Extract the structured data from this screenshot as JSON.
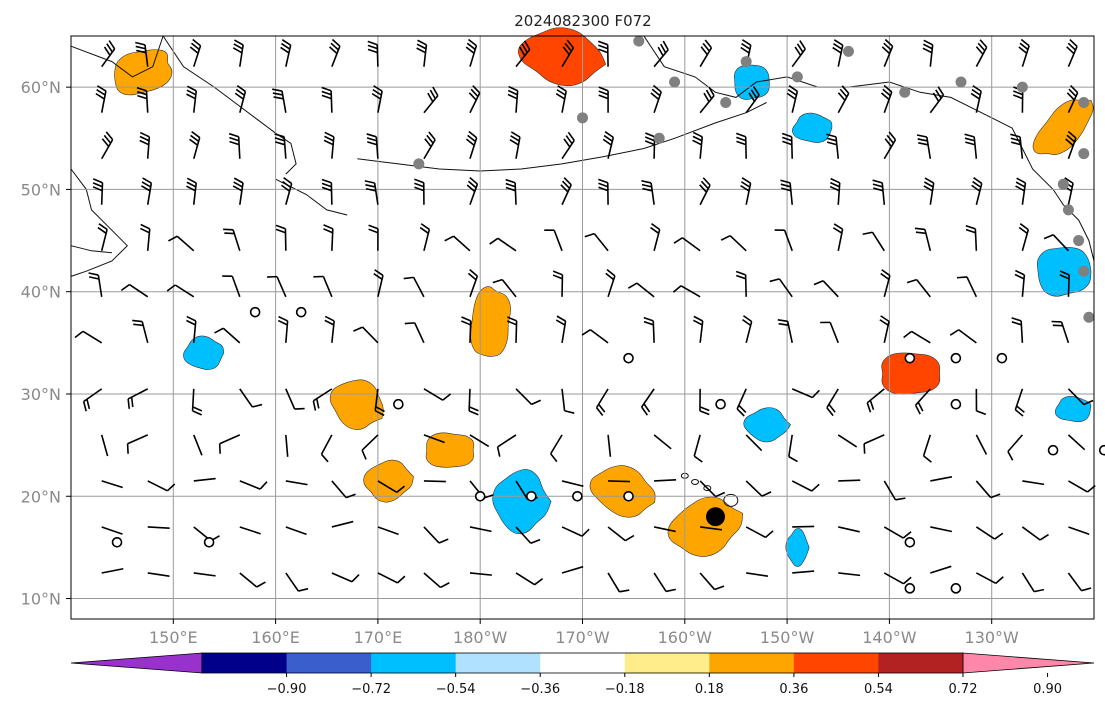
{
  "title": "2024082300 F072",
  "map": {
    "lon_range": [
      140,
      240
    ],
    "lat_range": [
      8,
      65
    ],
    "grid": true,
    "coastlines": [
      "alaska-and-aleutians",
      "western-canada-and-us-coast",
      "kamchatka-and-kuril",
      "japan-north",
      "hawaiian-islands"
    ]
  },
  "axes": {
    "y_ticks": [
      {
        "lat": 10,
        "label": "10°N"
      },
      {
        "lat": 20,
        "label": "20°N"
      },
      {
        "lat": 30,
        "label": "30°N"
      },
      {
        "lat": 40,
        "label": "40°N"
      },
      {
        "lat": 50,
        "label": "50°N"
      },
      {
        "lat": 60,
        "label": "60°N"
      }
    ],
    "x_ticks": [
      {
        "lon": 150,
        "label": "150°E"
      },
      {
        "lon": 160,
        "label": "160°E"
      },
      {
        "lon": 170,
        "label": "170°E"
      },
      {
        "lon": 180,
        "label": "180°W"
      },
      {
        "lon": 190,
        "label": "170°W"
      },
      {
        "lon": 200,
        "label": "160°W"
      },
      {
        "lon": 210,
        "label": "150°W"
      },
      {
        "lon": 220,
        "label": "140°W"
      },
      {
        "lon": 230,
        "label": "130°W"
      }
    ]
  },
  "colorbar": {
    "extend": "both",
    "colors": [
      "#9932cc",
      "#00008b",
      "#3a5fcd",
      "#00bfff",
      "#b0e2ff",
      "#ffffff",
      "#ffec8b",
      "#ffa500",
      "#ff4500",
      "#b22222",
      "#ff88aa"
    ],
    "tick_values": [
      "−0.90",
      "−0.72",
      "−0.54",
      "−0.36",
      "−0.18",
      "0.18",
      "0.36",
      "0.54",
      "0.72",
      "0.90"
    ]
  },
  "chart_data": {
    "type": "map",
    "field": "filled contours",
    "regions": [
      {
        "level": 0.45,
        "lon": 147,
        "lat": 61.5
      },
      {
        "level": 0.6,
        "lon": 188,
        "lat": 63
      },
      {
        "level": 0.5,
        "lon": 237,
        "lat": 56
      },
      {
        "level": 0.45,
        "lon": 181,
        "lat": 37
      },
      {
        "level": 0.45,
        "lon": 168,
        "lat": 29
      },
      {
        "level": 0.45,
        "lon": 171,
        "lat": 21.5
      },
      {
        "level": 0.45,
        "lon": 177,
        "lat": 24.5
      },
      {
        "level": 0.45,
        "lon": 194,
        "lat": 20.5
      },
      {
        "level": 0.45,
        "lon": 202,
        "lat": 17
      },
      {
        "level": 0.6,
        "lon": 222,
        "lat": 32
      },
      {
        "level": -0.45,
        "lon": 153,
        "lat": 34
      },
      {
        "level": -0.45,
        "lon": 184,
        "lat": 19.5
      },
      {
        "level": -0.45,
        "lon": 206.5,
        "lat": 60.5
      },
      {
        "level": -0.45,
        "lon": 212.5,
        "lat": 56
      },
      {
        "level": -0.45,
        "lon": 208,
        "lat": 27
      },
      {
        "level": -0.45,
        "lon": 237,
        "lat": 42
      },
      {
        "level": -0.45,
        "lon": 238,
        "lat": 28.5
      },
      {
        "level": -0.45,
        "lon": 211,
        "lat": 15
      }
    ],
    "hurricane_marker": {
      "lon": 203,
      "lat": 18
    },
    "station_markers": [
      {
        "lon": 190,
        "lat": 57
      },
      {
        "lon": 197.5,
        "lat": 55
      },
      {
        "lon": 199,
        "lat": 60.5
      },
      {
        "lon": 204,
        "lat": 58.5
      },
      {
        "lon": 206,
        "lat": 62.5
      },
      {
        "lon": 211,
        "lat": 61
      },
      {
        "lon": 216,
        "lat": 63.5
      },
      {
        "lon": 221.5,
        "lat": 59.5
      },
      {
        "lon": 227,
        "lat": 60.5
      },
      {
        "lon": 233,
        "lat": 60
      },
      {
        "lon": 239,
        "lat": 58.5
      },
      {
        "lon": 239,
        "lat": 53.5
      },
      {
        "lon": 237,
        "lat": 50.5
      },
      {
        "lon": 237.5,
        "lat": 48
      },
      {
        "lon": 238.5,
        "lat": 45
      },
      {
        "lon": 239,
        "lat": 42
      },
      {
        "lon": 239.5,
        "lat": 37.5
      },
      {
        "lon": 174,
        "lat": 52.5
      },
      {
        "lon": 195.5,
        "lat": 64.5
      }
    ],
    "calm_points": [
      {
        "lon": 158,
        "lat": 38
      },
      {
        "lon": 162.5,
        "lat": 38
      },
      {
        "lon": 172,
        "lat": 29
      },
      {
        "lon": 180,
        "lat": 20
      },
      {
        "lon": 185,
        "lat": 20
      },
      {
        "lon": 189.5,
        "lat": 20
      },
      {
        "lon": 194.5,
        "lat": 20
      },
      {
        "lon": 194.5,
        "lat": 33.5
      },
      {
        "lon": 203.5,
        "lat": 29
      },
      {
        "lon": 222,
        "lat": 33.5
      },
      {
        "lon": 226.5,
        "lat": 33.5
      },
      {
        "lon": 231,
        "lat": 33.5
      },
      {
        "lon": 226.5,
        "lat": 29
      },
      {
        "lon": 236,
        "lat": 24.5
      },
      {
        "lon": 241,
        "lat": 24.5
      },
      {
        "lon": 144.5,
        "lat": 15.5
      },
      {
        "lon": 153.5,
        "lat": 15.5
      },
      {
        "lon": 222,
        "lat": 15.5
      },
      {
        "lon": 222,
        "lat": 11
      },
      {
        "lon": 226.5,
        "lat": 11
      }
    ]
  }
}
